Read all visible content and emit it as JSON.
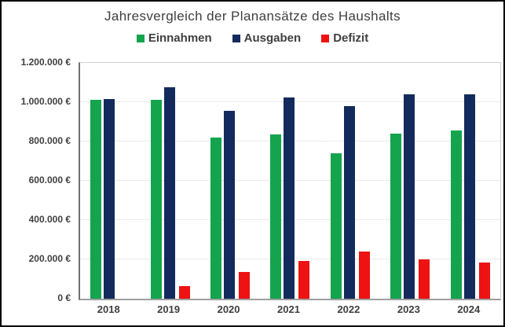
{
  "colors": {
    "text": "#3F3F3F",
    "grid": "#D6D6D6",
    "axis_left": "#707070",
    "axis_bottom": "#9E9E9E",
    "plot_border": "#D0D0D0",
    "frame_border": "#000000",
    "background": "#FFFFFF",
    "einnahmen": "#14A44E",
    "ausgaben": "#132A5C",
    "defizit": "#EE1212"
  },
  "chart_data": {
    "type": "bar",
    "title": "Jahresvergleich der Planansätze des Haushalts",
    "categories": [
      "2018",
      "2019",
      "2020",
      "2021",
      "2022",
      "2023",
      "2024"
    ],
    "series": [
      {
        "name": "Einnahmen",
        "color": "#14A44E",
        "values": [
          1010000,
          1010000,
          820000,
          835000,
          740000,
          840000,
          855000
        ]
      },
      {
        "name": "Ausgaben",
        "color": "#132A5C",
        "values": [
          1015000,
          1075000,
          955000,
          1025000,
          980000,
          1040000,
          1040000
        ]
      },
      {
        "name": "Defizit",
        "color": "#EE1212",
        "values": [
          0,
          65000,
          135000,
          190000,
          240000,
          200000,
          185000
        ]
      }
    ],
    "xlabel": "",
    "ylabel": "",
    "ylim": [
      0,
      1200000
    ],
    "ytick_interval": 200000,
    "ytick_labels": [
      "0 €",
      "200.000 €",
      "400.000 €",
      "600.000 €",
      "800.000 €",
      "1.000.000 €",
      "1.200.000 €"
    ],
    "grid": "horizontal-dotted",
    "legend_position": "top"
  }
}
